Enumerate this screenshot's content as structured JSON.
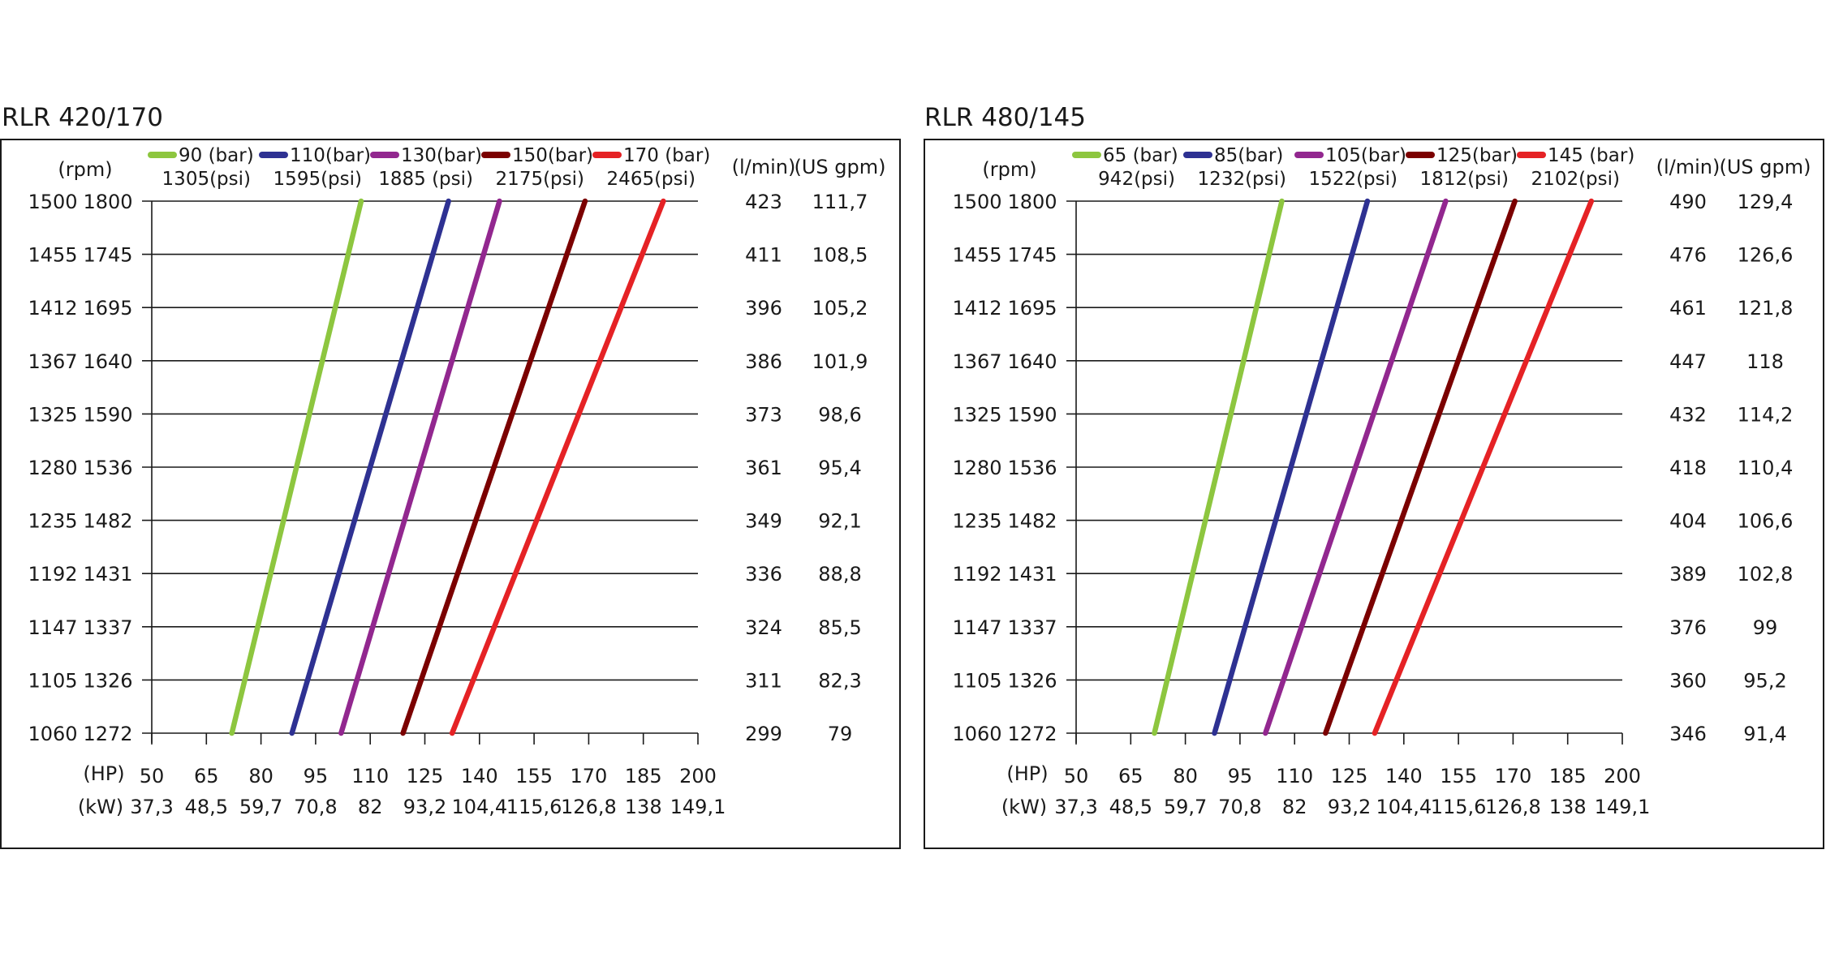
{
  "chart_data": [
    {
      "type": "line",
      "title": "RLR 420/170",
      "x_axis_hp": {
        "label": "(HP)",
        "ticks": [
          "50",
          "65",
          "80",
          "95",
          "110",
          "125",
          "140",
          "155",
          "170",
          "185",
          "200"
        ],
        "xlim": [
          50,
          200
        ]
      },
      "x_axis_kw": {
        "label": "(kW)",
        "ticks": [
          "37,3",
          "48,5",
          "59,7",
          "70,8",
          "82",
          "93,2",
          "104,4",
          "115,6",
          "126,8",
          "138",
          "149,1"
        ]
      },
      "y_axis_left": {
        "label": "(rpm)",
        "col1": [
          "1500",
          "1455",
          "1412",
          "1367",
          "1325",
          "1280",
          "1235",
          "1192",
          "1147",
          "1105",
          "1060"
        ],
        "col2": [
          "1800",
          "1745",
          "1695",
          "1640",
          "1590",
          "1536",
          "1482",
          "1431",
          "1337",
          "1326",
          "1272"
        ]
      },
      "y_axis_right": {
        "label_lmin": "(l/min)",
        "label_gpm": "(US gpm)",
        "lmin": [
          "423",
          "411",
          "396",
          "386",
          "373",
          "361",
          "349",
          "336",
          "324",
          "311",
          "299"
        ],
        "gpm": [
          "111,7",
          "108,5",
          "105,2",
          "101,9",
          "98,6",
          "95,4",
          "92,1",
          "88,8",
          "85,5",
          "82,3",
          "79"
        ]
      },
      "ylim": [
        1272,
        1800
      ],
      "grid": "horizontal",
      "legend_position": "top",
      "series": [
        {
          "name": "90 (bar)",
          "name2": "1305(psi)",
          "color": "#8dc63f",
          "x": [
            72,
            107.5
          ],
          "y": [
            1272,
            1800
          ]
        },
        {
          "name": "110(bar)",
          "name2": "1595(psi)",
          "color": "#2e3192",
          "x": [
            88.5,
            131.5
          ],
          "y": [
            1272,
            1800
          ]
        },
        {
          "name": "130(bar)",
          "name2": "1885 (psi)",
          "color": "#92278f",
          "x": [
            102,
            145.5
          ],
          "y": [
            1272,
            1800
          ]
        },
        {
          "name": "150(bar)",
          "name2": "2175(psi)",
          "color": "#7b0000",
          "x": [
            119,
            169
          ],
          "y": [
            1272,
            1800
          ]
        },
        {
          "name": "170 (bar)",
          "name2": "2465(psi)",
          "color": "#e52225",
          "x": [
            132.5,
            190.5
          ],
          "y": [
            1272,
            1800
          ]
        }
      ]
    },
    {
      "type": "line",
      "title": "RLR 480/145",
      "x_axis_hp": {
        "label": "(HP)",
        "ticks": [
          "50",
          "65",
          "80",
          "95",
          "110",
          "125",
          "140",
          "155",
          "170",
          "185",
          "200"
        ],
        "xlim": [
          50,
          200
        ]
      },
      "x_axis_kw": {
        "label": "(kW)",
        "ticks": [
          "37,3",
          "48,5",
          "59,7",
          "70,8",
          "82",
          "93,2",
          "104,4",
          "115,6",
          "126,8",
          "138",
          "149,1"
        ]
      },
      "y_axis_left": {
        "label": "(rpm)",
        "col1": [
          "1500",
          "1455",
          "1412",
          "1367",
          "1325",
          "1280",
          "1235",
          "1192",
          "1147",
          "1105",
          "1060"
        ],
        "col2": [
          "1800",
          "1745",
          "1695",
          "1640",
          "1590",
          "1536",
          "1482",
          "1431",
          "1337",
          "1326",
          "1272"
        ]
      },
      "y_axis_right": {
        "label_lmin": "(l/min)",
        "label_gpm": "(US gpm)",
        "lmin": [
          "490",
          "476",
          "461",
          "447",
          "432",
          "418",
          "404",
          "389",
          "376",
          "360",
          "346"
        ],
        "gpm": [
          "129,4",
          "126,6",
          "121,8",
          "118",
          "114,2",
          "110,4",
          "106,6",
          "102,8",
          "99",
          "95,2",
          "91,4"
        ]
      },
      "ylim": [
        1272,
        1800
      ],
      "grid": "horizontal",
      "legend_position": "top",
      "series": [
        {
          "name": "65 (bar)",
          "name2": "942(psi)",
          "color": "#8dc63f",
          "x": [
            71.5,
            106.5
          ],
          "y": [
            1272,
            1800
          ]
        },
        {
          "name": "85(bar)",
          "name2": "1232(psi)",
          "color": "#2e3192",
          "x": [
            88,
            130
          ],
          "y": [
            1272,
            1800
          ]
        },
        {
          "name": "105(bar)",
          "name2": "1522(psi)",
          "color": "#92278f",
          "x": [
            102,
            151.5
          ],
          "y": [
            1272,
            1800
          ]
        },
        {
          "name": "125(bar)",
          "name2": "1812(psi)",
          "color": "#7b0000",
          "x": [
            118.5,
            170.5
          ],
          "y": [
            1272,
            1800
          ]
        },
        {
          "name": "145 (bar)",
          "name2": "2102(psi)",
          "color": "#e52225",
          "x": [
            132,
            191.5
          ],
          "y": [
            1272,
            1800
          ]
        }
      ]
    }
  ]
}
